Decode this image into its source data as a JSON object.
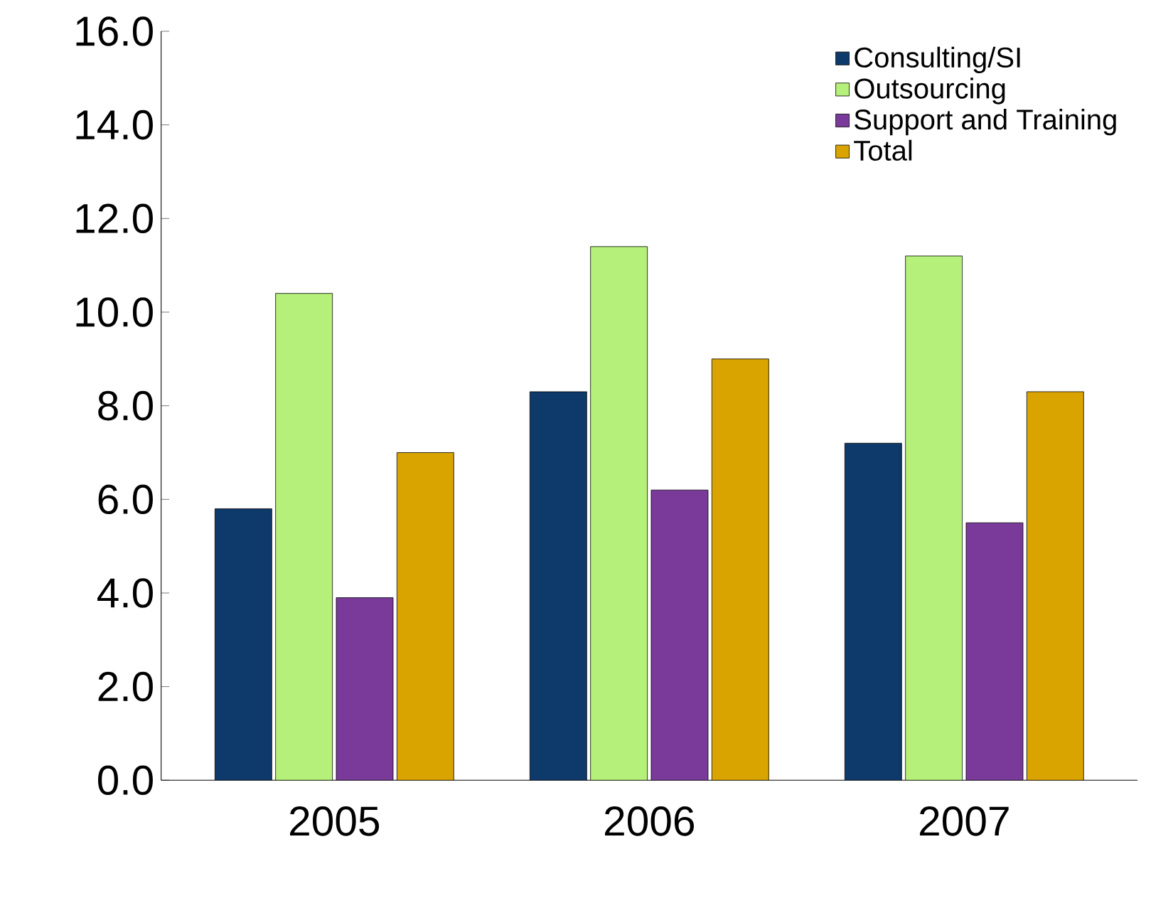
{
  "chart_data": {
    "type": "bar",
    "categories": [
      "2005",
      "2006",
      "2007"
    ],
    "series": [
      {
        "name": "Consulting/SI",
        "color": "#0d3a6b",
        "values": [
          5.8,
          8.3,
          7.2
        ]
      },
      {
        "name": "Outsourcing",
        "color": "#b5f07a",
        "values": [
          10.4,
          11.4,
          11.2
        ]
      },
      {
        "name": "Support and Training",
        "color": "#7a3a9a",
        "values": [
          3.9,
          6.2,
          5.5
        ]
      },
      {
        "name": "Total",
        "color": "#d9a400",
        "values": [
          7.0,
          9.0,
          8.3
        ]
      }
    ],
    "ylim": [
      0,
      16
    ],
    "yticks": [
      {
        "value": 0,
        "label": "0.0"
      },
      {
        "value": 2,
        "label": "2.0"
      },
      {
        "value": 4,
        "label": "4.0"
      },
      {
        "value": 6,
        "label": "6.0"
      },
      {
        "value": 8,
        "label": "8.0"
      },
      {
        "value": 10,
        "label": "10.0"
      },
      {
        "value": 12,
        "label": "12.0"
      },
      {
        "value": 14,
        "label": "14.0"
      },
      {
        "value": 16,
        "label": "16.0"
      }
    ],
    "legend": "top right",
    "grid": false
  }
}
